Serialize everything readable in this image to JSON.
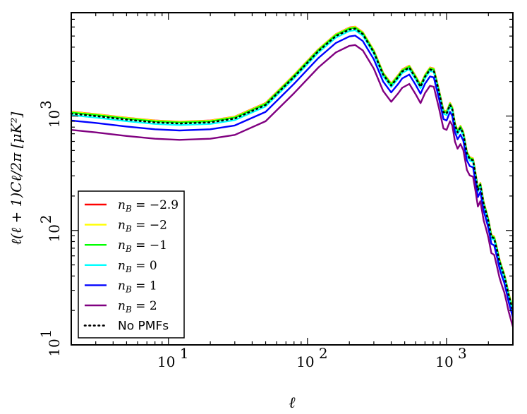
{
  "chart_data": {
    "type": "line",
    "title": "",
    "xlabel": "ℓ",
    "ylabel": "ℓ(ℓ + 1)Cℓ/2π  [μK²]",
    "xscale": "log",
    "yscale": "log",
    "xlim": [
      2,
      3000
    ],
    "ylim": [
      10,
      8000
    ],
    "grid": false,
    "legend_position": "lower-left",
    "xticks": [
      {
        "value": 10,
        "label": "10",
        "exp": "1"
      },
      {
        "value": 100,
        "label": "10",
        "exp": "2"
      },
      {
        "value": 1000,
        "label": "10",
        "exp": "3"
      }
    ],
    "yticks": [
      {
        "value": 10,
        "label": "10",
        "exp": "1"
      },
      {
        "value": 100,
        "label": "10",
        "exp": "2"
      },
      {
        "value": 1000,
        "label": "10",
        "exp": "3"
      }
    ],
    "base_curve": {
      "x": [
        2,
        3,
        5,
        8,
        12,
        20,
        30,
        50,
        80,
        120,
        160,
        200,
        220,
        250,
        300,
        350,
        400,
        450,
        480,
        540,
        600,
        650,
        700,
        760,
        810,
        880,
        950,
        1000,
        1060,
        1100,
        1150,
        1200,
        1260,
        1320,
        1400,
        1470,
        1550,
        1620,
        1680,
        1750,
        1850,
        1920,
        2000,
        2100,
        2200,
        2300,
        2400,
        2500,
        2600,
        2700,
        2800,
        3000
      ],
      "y": [
        1050,
        1000,
        930,
        880,
        860,
        880,
        950,
        1250,
        2200,
        3700,
        5000,
        5700,
        5800,
        5200,
        3600,
        2300,
        1850,
        2200,
        2450,
        2650,
        2150,
        1800,
        2200,
        2550,
        2500,
        1650,
        1080,
        1050,
        1250,
        1150,
        830,
        720,
        790,
        700,
        470,
        420,
        410,
        300,
        225,
        250,
        170,
        145,
        120,
        88,
        85,
        68,
        54,
        46,
        40,
        33,
        27,
        20
      ]
    },
    "series": [
      {
        "name": "n_B = −2.9",
        "label_main": "n",
        "label_sub": "B",
        "label_value": " = −2.9",
        "color": "#ff0000",
        "scale": 1.04,
        "style": "solid"
      },
      {
        "name": "n_B = −2",
        "label_main": "n",
        "label_sub": "B",
        "label_value": " = −2",
        "color": "#ffff00",
        "scale": 1.035,
        "style": "solid"
      },
      {
        "name": "n_B = −1",
        "label_main": "n",
        "label_sub": "B",
        "label_value": " = −1",
        "color": "#00ff00",
        "scale": 1.02,
        "style": "solid"
      },
      {
        "name": "n_B = 0",
        "label_main": "n",
        "label_sub": "B",
        "label_value": " = 0",
        "color": "#00ffff",
        "scale": 0.97,
        "style": "solid"
      },
      {
        "name": "n_B = 1",
        "label_main": "n",
        "label_sub": "B",
        "label_value": " = 1",
        "color": "#0000ff",
        "scale": 0.87,
        "style": "solid"
      },
      {
        "name": "n_B = 2",
        "label_main": "n",
        "label_sub": "B",
        "label_value": " = 2",
        "color": "#800080",
        "scale": 0.72,
        "style": "solid"
      },
      {
        "name": "No PMFs",
        "label_plain": "No PMFs",
        "color": "#000000",
        "scale": 1.0,
        "style": "dotted"
      }
    ]
  }
}
